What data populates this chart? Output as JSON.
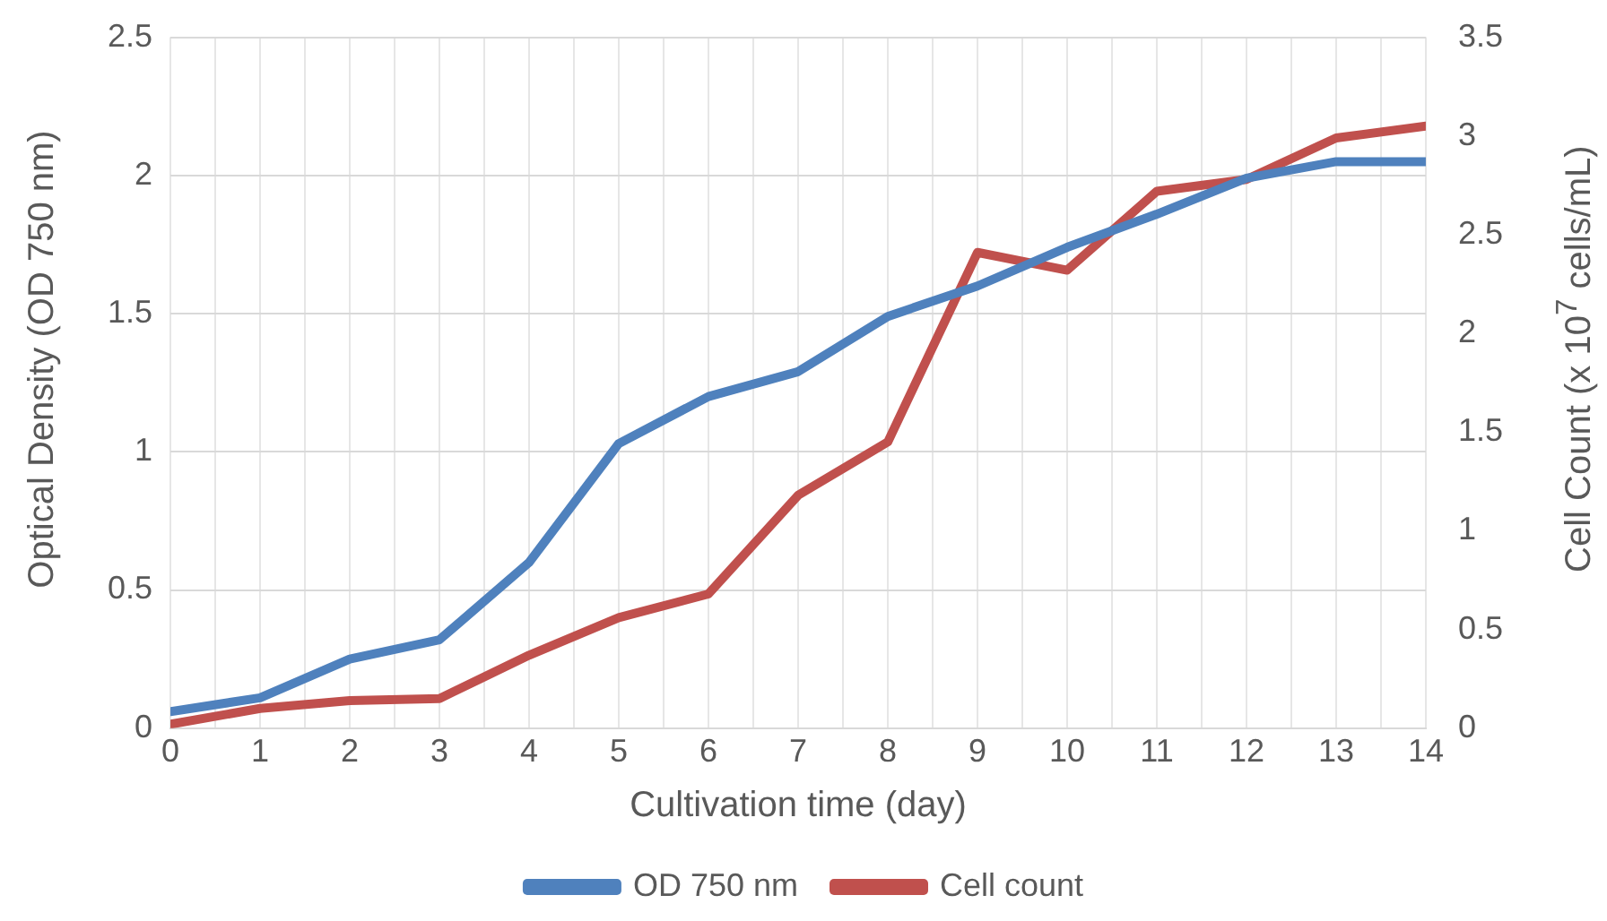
{
  "chart_data": {
    "type": "line",
    "xlabel": "Cultivation time (day)",
    "ylabel": "Optical Density (OD 750 nm)",
    "y2label": "Cell Count (x 10$^{7}$ cells/mL)",
    "x": [
      0,
      1,
      2,
      3,
      4,
      5,
      6,
      7,
      8,
      9,
      10,
      11,
      12,
      13,
      14
    ],
    "xlim": [
      0,
      14
    ],
    "xticks": [
      0,
      {
        "value": 0.5,
        "label": null
      },
      1,
      {
        "value": 1.5,
        "label": null
      },
      2,
      {
        "value": 2.5,
        "label": null
      },
      3,
      {
        "value": 3.5,
        "label": null
      },
      4,
      {
        "value": 4.5,
        "label": null
      },
      5,
      {
        "value": 5.5,
        "label": null
      },
      6,
      {
        "value": 6.5,
        "label": null
      },
      7,
      {
        "value": 7.5,
        "label": null
      },
      8,
      {
        "value": 8.5,
        "label": null
      },
      9,
      {
        "value": 9.5,
        "label": null
      },
      10,
      {
        "value": 10.5,
        "label": null
      },
      11,
      {
        "value": 11.5,
        "label": null
      },
      12,
      {
        "value": 12.5,
        "label": null
      },
      13,
      {
        "value": 13.5,
        "label": null
      },
      14
    ],
    "ylim": [
      0,
      2.5
    ],
    "yticks": [
      0,
      0.5,
      1,
      1.5,
      2,
      2.5
    ],
    "y2lim": [
      0,
      3.5
    ],
    "y2ticks": [
      0,
      0.5,
      1,
      1.5,
      2,
      2.5,
      3,
      3.5
    ],
    "series": [
      {
        "name": "OD 750 nm",
        "color": "#4f81bd",
        "values": [
          0.06,
          0.11,
          0.25,
          0.32,
          0.6,
          1.03,
          1.2,
          1.29,
          1.49,
          1.6,
          1.74,
          1.86,
          1.99,
          2.05,
          2.05
        ]
      },
      {
        "name": "Cell count",
        "color": "#c0504d",
        "axis": "y2",
        "values": [
          0.02,
          0.1,
          0.14,
          0.15,
          0.37,
          0.56,
          0.68,
          1.18,
          1.45,
          2.41,
          2.32,
          2.72,
          2.78,
          2.99,
          3.05
        ]
      }
    ],
    "grid": true,
    "legend": "bottom",
    "marker": "none",
    "line_style": "solid"
  }
}
